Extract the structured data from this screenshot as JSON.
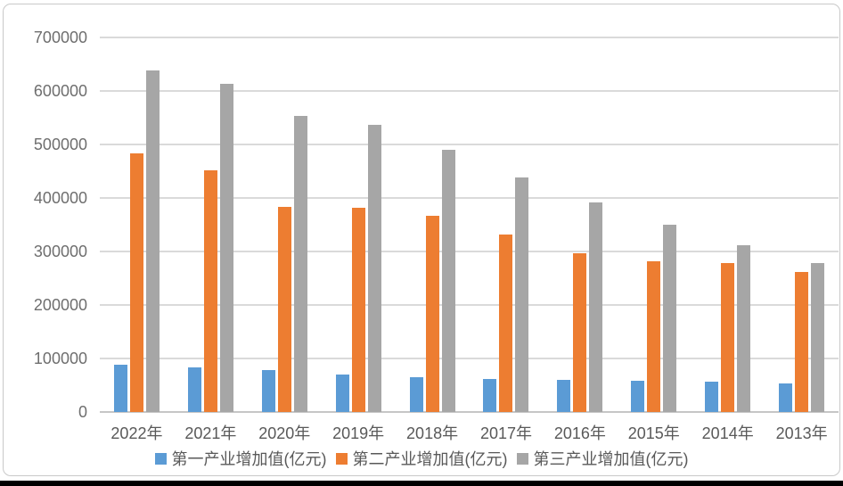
{
  "frame": {
    "background": "#ffffff",
    "border_color": "#c9c9c9",
    "bottom_bar_color": "#000000"
  },
  "chart_data": {
    "type": "bar",
    "title": "",
    "xlabel": "",
    "ylabel": "",
    "categories": [
      "2022年",
      "2021年",
      "2020年",
      "2019年",
      "2018年",
      "2017年",
      "2016年",
      "2015年",
      "2014年",
      "2013年"
    ],
    "series": [
      {
        "name": "第一产业增加值(亿元)",
        "color": "#5b9bd5",
        "values": [
          88000,
          83000,
          78000,
          70000,
          65000,
          62000,
          60000,
          58000,
          56000,
          53000
        ]
      },
      {
        "name": "第二产业增加值(亿元)",
        "color": "#ed7d31",
        "values": [
          483000,
          451000,
          384000,
          381000,
          366000,
          332000,
          297000,
          282000,
          278000,
          262000
        ]
      },
      {
        "name": "第三产业增加值(亿元)",
        "color": "#a6a6a6",
        "values": [
          639000,
          614000,
          554000,
          536000,
          490000,
          438000,
          391000,
          350000,
          311000,
          278000
        ]
      }
    ],
    "ylim": [
      0,
      700000
    ],
    "ytick_step": 100000,
    "yticks": [
      "700000",
      "600000",
      "500000",
      "400000",
      "300000",
      "200000",
      "100000",
      "0"
    ],
    "grid": true,
    "gridline_color": "#dadada",
    "legend_position": "bottom"
  }
}
